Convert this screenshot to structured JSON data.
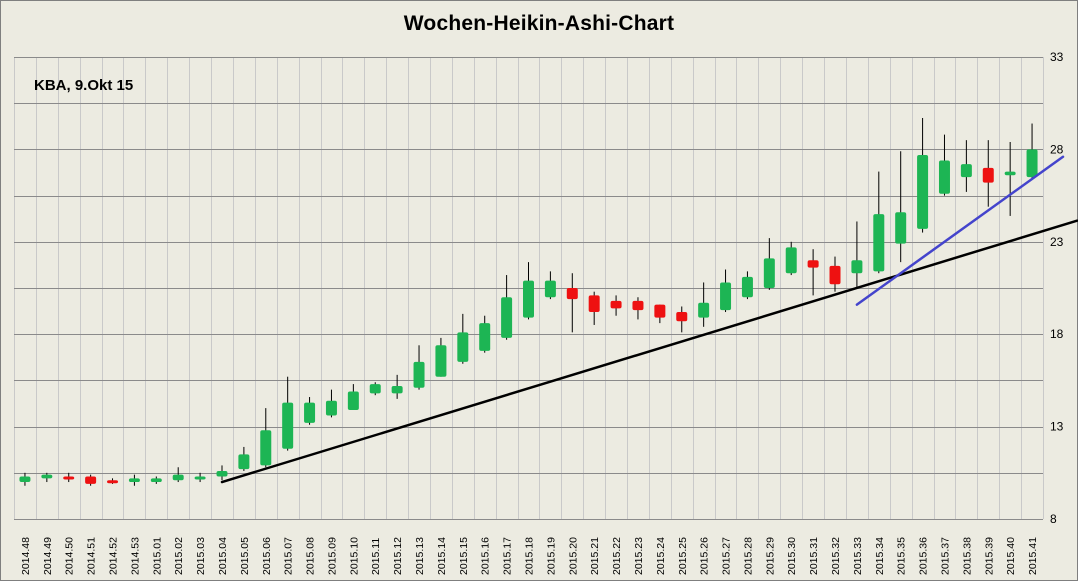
{
  "chart_data": {
    "type": "candlestick",
    "title": "Wochen-Heikin-Ashi-Chart",
    "annotation": "KBA, 9.Okt 15",
    "xlabel": "",
    "ylabel": "",
    "ylim": [
      8,
      33
    ],
    "yticks": [
      8,
      13,
      18,
      23,
      28,
      33
    ],
    "y_axis_side": "right",
    "grid": true,
    "colors": {
      "up": "#1db554",
      "down": "#ee1111",
      "support_line": "#000000",
      "trend_line": "#4444cc",
      "background": "#ecebe1"
    },
    "categories": [
      "2014.48",
      "2014.49",
      "2014.50",
      "2014.51",
      "2014.52",
      "2014.53",
      "2015.01",
      "2015.02",
      "2015.03",
      "2015.04",
      "2015.05",
      "2015.06",
      "2015.07",
      "2015.08",
      "2015.09",
      "2015.10",
      "2015.11",
      "2015.12",
      "2015.13",
      "2015.14",
      "2015.15",
      "2015.16",
      "2015.17",
      "2015.18",
      "2015.19",
      "2015.20",
      "2015.21",
      "2015.22",
      "2015.23",
      "2015.24",
      "2015.25",
      "2015.26",
      "2015.27",
      "2015.28",
      "2015.29",
      "2015.30",
      "2015.31",
      "2015.32",
      "2015.33",
      "2015.34",
      "2015.35",
      "2015.36",
      "2015.37",
      "2015.38",
      "2015.39",
      "2015.40",
      "2015.41"
    ],
    "open": [
      10.0,
      10.2,
      10.3,
      10.3,
      10.1,
      10.0,
      10.0,
      10.1,
      10.2,
      10.3,
      10.7,
      10.9,
      11.8,
      13.2,
      13.6,
      13.9,
      14.8,
      14.8,
      15.1,
      15.7,
      16.5,
      17.1,
      17.8,
      18.9,
      20.0,
      20.5,
      20.1,
      19.8,
      19.8,
      19.6,
      19.2,
      18.9,
      19.3,
      20.0,
      20.5,
      21.3,
      22.0,
      21.7,
      21.3,
      21.4,
      22.9,
      23.7,
      25.6,
      26.5,
      27.0,
      26.6,
      26.5
    ],
    "high": [
      10.5,
      10.5,
      10.5,
      10.4,
      10.2,
      10.4,
      10.3,
      10.8,
      10.5,
      10.9,
      11.9,
      14.0,
      15.7,
      14.6,
      15.0,
      15.3,
      15.4,
      15.8,
      17.4,
      17.8,
      19.1,
      19.0,
      21.2,
      21.9,
      21.4,
      21.3,
      20.3,
      20.1,
      20.0,
      19.6,
      19.5,
      20.8,
      21.5,
      21.4,
      23.2,
      23.0,
      22.6,
      22.2,
      24.1,
      26.8,
      27.9,
      29.7,
      28.8,
      28.5,
      28.5,
      28.4,
      29.4
    ],
    "low": [
      9.8,
      10.0,
      10.0,
      9.8,
      9.9,
      9.8,
      9.9,
      10.0,
      10.0,
      10.1,
      10.6,
      10.8,
      11.7,
      13.1,
      13.5,
      13.9,
      14.7,
      14.5,
      15.0,
      15.7,
      16.4,
      17.0,
      17.7,
      18.8,
      19.9,
      18.1,
      18.5,
      19.0,
      18.8,
      18.6,
      18.1,
      18.4,
      19.2,
      19.9,
      20.4,
      21.2,
      20.1,
      20.3,
      20.5,
      21.3,
      21.9,
      23.5,
      25.5,
      25.7,
      24.9,
      24.4,
      26.4
    ],
    "close": [
      10.3,
      10.4,
      10.2,
      9.9,
      10.0,
      10.2,
      10.2,
      10.4,
      10.3,
      10.6,
      11.5,
      12.8,
      14.3,
      14.3,
      14.4,
      14.9,
      15.3,
      15.2,
      16.5,
      17.4,
      18.1,
      18.6,
      20.0,
      20.9,
      20.9,
      19.9,
      19.2,
      19.4,
      19.3,
      18.9,
      18.7,
      19.7,
      20.8,
      21.1,
      22.1,
      22.7,
      21.6,
      20.7,
      22.0,
      24.5,
      24.6,
      27.7,
      27.4,
      27.2,
      26.2,
      26.8,
      28.0
    ],
    "lines": [
      {
        "name": "",
        "x": [
          "2015.04",
          "2015.41"
        ],
        "y": [
          10.0,
          23.4
        ],
        "extend_right": true,
        "color": "#000000"
      },
      {
        "name": "",
        "x": [
          "2015.33",
          "2015.41"
        ],
        "y": [
          19.6,
          26.4
        ],
        "extend_right": true,
        "color": "#4444cc"
      }
    ]
  }
}
